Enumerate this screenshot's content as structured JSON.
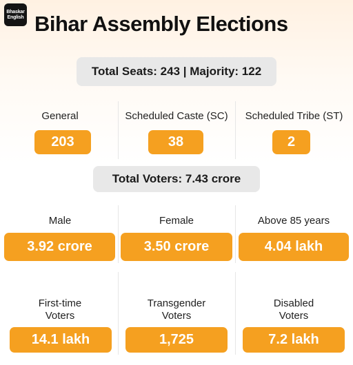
{
  "logo": {
    "line1": "Bhaskar",
    "line2": "English"
  },
  "title": "Bihar Assembly Elections",
  "seats_summary": "Total Seats: 243 | Majority: 122",
  "seat_categories": [
    {
      "label": "General",
      "value": "203"
    },
    {
      "label": "Scheduled Caste (SC)",
      "value": "38"
    },
    {
      "label": "Scheduled Tribe (ST)",
      "value": "2"
    }
  ],
  "voters_summary": "Total Voters: 7.43 crore",
  "voter_groups": [
    {
      "label": "Male",
      "value": "3.92 crore"
    },
    {
      "label": "Female",
      "value": "3.50 crore"
    },
    {
      "label": "Above 85 years",
      "value": "4.04 lakh"
    }
  ],
  "voter_groups_2": [
    {
      "label_line1": "First-time",
      "label_line2": "Voters",
      "value": "14.1 lakh"
    },
    {
      "label_line1": "Transgender",
      "label_line2": "Voters",
      "value": "1,725"
    },
    {
      "label_line1": "Disabled",
      "label_line2": "Voters",
      "value": "7.2 lakh"
    }
  ],
  "colors": {
    "accent": "#f5a020",
    "pill": "#e8e8e8",
    "header_tint": "#fff1e2"
  }
}
